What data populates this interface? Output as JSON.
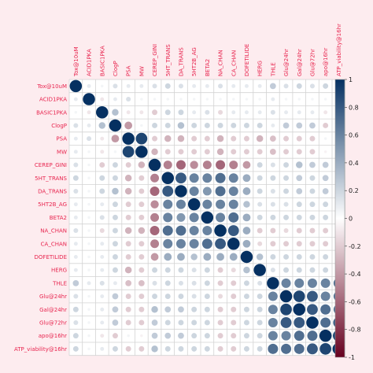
{
  "chart_data": {
    "type": "heatmap",
    "variables": [
      "Tox@10uM",
      "ACID1PKA",
      "BASIC1PKA",
      "ClogP",
      "PSA",
      "MW",
      "CEREP_GINI",
      "5HT_TRANS",
      "DA_TRANS",
      "5HT2B_AG",
      "BETA2",
      "NA_CHAN",
      "CA_CHAN",
      "DOFETILIDE",
      "HERG",
      "THLE",
      "Glu@24hr",
      "Gal@24hr",
      "Glu@72hr",
      "apo@16hr",
      "ATP_viability@16hr"
    ],
    "matrix": [
      [
        1.0,
        0.1,
        0.05,
        0.15,
        0.1,
        0.1,
        0.15,
        0.2,
        0.15,
        0.1,
        0.1,
        0.15,
        0.1,
        0.1,
        0.1,
        0.25,
        0.15,
        0.2,
        0.15,
        0.2,
        0.2
      ],
      [
        0.1,
        1.0,
        -0.1,
        0.1,
        0.15,
        0.05,
        0.05,
        0.05,
        0.05,
        0.05,
        0.05,
        0.05,
        0.05,
        0.05,
        0.05,
        0.1,
        0.05,
        0.05,
        0.05,
        0.05,
        0.05
      ],
      [
        0.05,
        -0.1,
        1.0,
        0.3,
        -0.1,
        -0.1,
        -0.2,
        0.2,
        0.2,
        0.1,
        0.15,
        -0.15,
        0.1,
        0.1,
        0.1,
        0.15,
        0.1,
        0.1,
        0.1,
        -0.1,
        0.1
      ],
      [
        0.15,
        0.1,
        0.3,
        1.0,
        -0.4,
        0.05,
        0.2,
        0.2,
        0.3,
        0.2,
        0.2,
        0.2,
        0.2,
        0.2,
        0.2,
        0.1,
        0.25,
        0.25,
        0.25,
        -0.2,
        0.2
      ],
      [
        0.1,
        0.15,
        -0.1,
        -0.4,
        1.0,
        0.9,
        -0.2,
        -0.3,
        -0.3,
        -0.2,
        -0.2,
        -0.3,
        -0.2,
        -0.2,
        -0.3,
        -0.25,
        -0.2,
        -0.2,
        -0.2,
        0.05,
        -0.2
      ],
      [
        0.1,
        0.05,
        -0.1,
        0.05,
        0.9,
        1.0,
        -0.3,
        -0.2,
        -0.2,
        -0.2,
        -0.2,
        -0.3,
        -0.2,
        -0.2,
        -0.2,
        -0.25,
        -0.2,
        -0.2,
        -0.2,
        -0.05,
        -0.2
      ],
      [
        0.15,
        0.05,
        -0.2,
        0.2,
        -0.2,
        -0.3,
        1.0,
        -0.5,
        -0.6,
        -0.45,
        -0.5,
        -0.6,
        -0.5,
        -0.4,
        0.2,
        0.15,
        0.2,
        0.3,
        0.25,
        0.25,
        0.3
      ],
      [
        0.2,
        0.05,
        0.2,
        0.2,
        -0.3,
        -0.2,
        -0.5,
        1.0,
        0.8,
        0.6,
        0.6,
        0.7,
        0.6,
        0.4,
        0.2,
        0.2,
        0.2,
        0.25,
        0.2,
        0.25,
        0.2
      ],
      [
        0.15,
        0.05,
        0.2,
        0.3,
        -0.3,
        -0.2,
        -0.6,
        0.8,
        1.0,
        0.6,
        0.5,
        0.7,
        0.6,
        0.4,
        0.2,
        0.15,
        0.2,
        0.25,
        0.2,
        0.25,
        0.2
      ],
      [
        0.1,
        0.05,
        0.1,
        0.2,
        -0.2,
        -0.2,
        -0.45,
        0.6,
        0.6,
        1.0,
        0.6,
        0.6,
        0.6,
        0.3,
        0.15,
        0.15,
        0.15,
        0.2,
        0.2,
        0.2,
        0.2
      ],
      [
        0.1,
        0.05,
        0.15,
        0.2,
        -0.2,
        -0.2,
        -0.5,
        0.6,
        0.5,
        0.6,
        1.0,
        0.6,
        0.7,
        0.4,
        0.2,
        0.2,
        0.2,
        0.2,
        0.2,
        0.2,
        0.2
      ],
      [
        0.15,
        0.05,
        -0.15,
        0.2,
        -0.3,
        -0.3,
        -0.6,
        0.7,
        0.7,
        0.6,
        0.6,
        1.0,
        0.8,
        0.4,
        -0.2,
        -0.2,
        -0.15,
        -0.2,
        -0.2,
        -0.2,
        -0.2
      ],
      [
        0.1,
        0.05,
        0.1,
        0.2,
        -0.2,
        -0.2,
        -0.5,
        0.6,
        0.6,
        0.6,
        0.7,
        0.8,
        1.0,
        0.4,
        -0.15,
        -0.2,
        -0.2,
        -0.2,
        -0.2,
        -0.2,
        -0.2
      ],
      [
        0.1,
        0.05,
        0.1,
        0.2,
        -0.2,
        -0.2,
        -0.4,
        0.4,
        0.4,
        0.3,
        0.4,
        0.4,
        0.4,
        1.0,
        0.3,
        0.2,
        0.2,
        0.2,
        0.2,
        0.2,
        0.2
      ],
      [
        0.1,
        0.05,
        0.1,
        0.2,
        -0.3,
        -0.2,
        0.2,
        0.2,
        0.2,
        0.15,
        0.2,
        -0.2,
        -0.15,
        0.3,
        1.0,
        0.15,
        0.2,
        0.2,
        0.2,
        0.2,
        0.2
      ],
      [
        0.25,
        0.1,
        0.15,
        0.1,
        -0.25,
        -0.25,
        0.15,
        0.2,
        0.15,
        0.15,
        0.2,
        -0.2,
        -0.2,
        0.2,
        0.15,
        1.0,
        0.6,
        0.6,
        0.6,
        0.6,
        0.7
      ],
      [
        0.15,
        0.05,
        0.1,
        0.25,
        -0.2,
        -0.2,
        0.2,
        0.2,
        0.2,
        0.15,
        0.2,
        -0.15,
        -0.2,
        0.2,
        0.2,
        0.6,
        1.0,
        0.9,
        0.8,
        0.6,
        0.7
      ],
      [
        0.2,
        0.05,
        0.1,
        0.25,
        -0.2,
        -0.2,
        0.3,
        0.25,
        0.25,
        0.2,
        0.2,
        -0.2,
        -0.2,
        0.2,
        0.2,
        0.6,
        0.9,
        1.0,
        0.8,
        0.7,
        0.7
      ],
      [
        0.15,
        0.05,
        0.1,
        0.25,
        -0.2,
        -0.2,
        0.25,
        0.2,
        0.2,
        0.2,
        0.2,
        -0.2,
        -0.2,
        0.2,
        0.2,
        0.6,
        0.8,
        0.8,
        1.0,
        0.7,
        0.8
      ],
      [
        0.2,
        0.05,
        -0.1,
        -0.2,
        0.05,
        -0.05,
        0.25,
        0.25,
        0.25,
        0.2,
        0.2,
        -0.2,
        -0.2,
        0.2,
        0.2,
        0.6,
        0.6,
        0.7,
        0.7,
        1.0,
        0.9
      ],
      [
        0.2,
        0.05,
        0.1,
        0.2,
        -0.2,
        -0.2,
        0.3,
        0.2,
        0.2,
        0.2,
        0.2,
        -0.2,
        -0.2,
        0.2,
        0.2,
        0.7,
        0.7,
        0.7,
        0.8,
        0.9,
        1.0
      ]
    ],
    "legend": {
      "position": "right",
      "range": [
        -1,
        1
      ],
      "ticks": [
        "1",
        "0.8",
        "0.6",
        "0.4",
        "0.2",
        "0",
        "-0.2",
        "-0.4",
        "-0.6",
        "-0.8",
        "-1"
      ]
    },
    "colors": {
      "negative": "#67001f",
      "zero": "#ffffff",
      "positive": "#053061",
      "label": "#e8254f",
      "grid": "#d3d3d3"
    },
    "grid": true,
    "glyph": "circle"
  }
}
